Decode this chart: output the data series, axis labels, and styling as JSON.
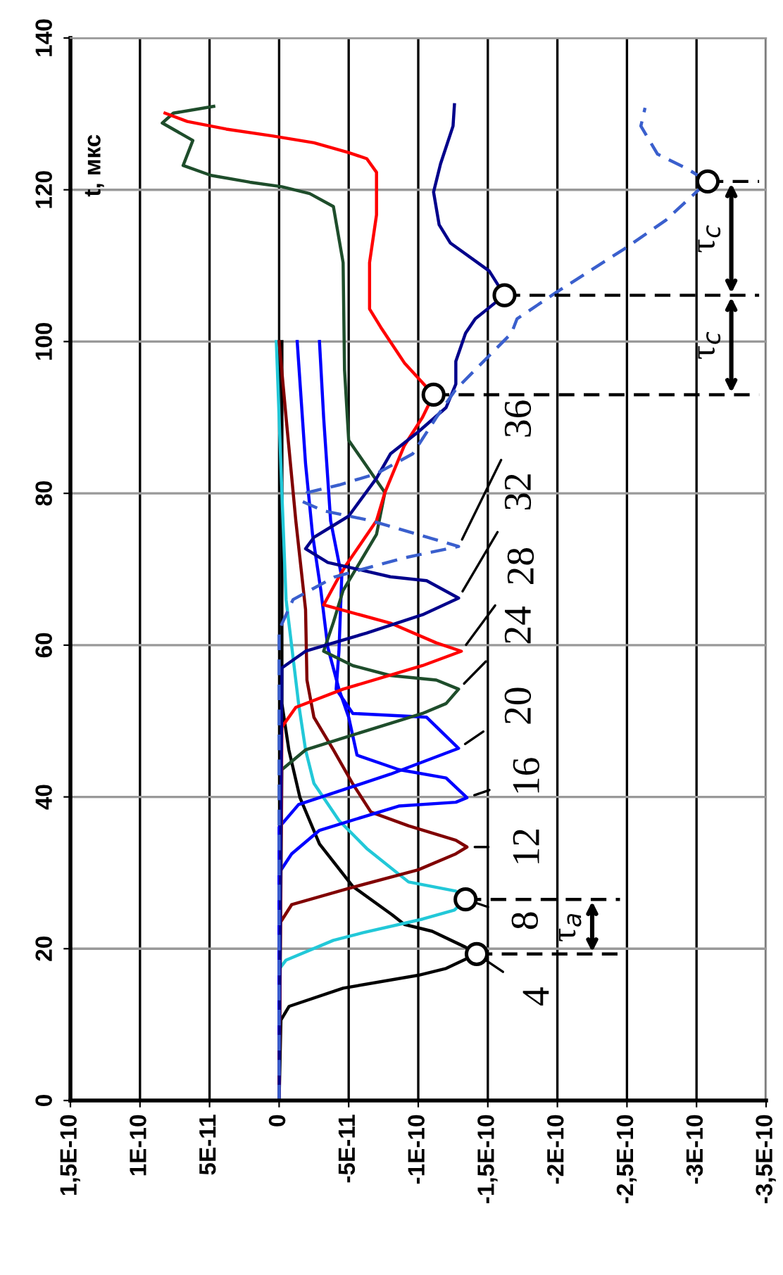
{
  "chart_data": {
    "type": "line",
    "ylabel": "t, мкс",
    "xlim": [
      1.5e-10,
      -3.5e-10
    ],
    "ylim": [
      0,
      140
    ],
    "xticks": [
      {
        "value": 1.5e-10,
        "label": "1,5E-10"
      },
      {
        "value": 1e-10,
        "label": "1E-10"
      },
      {
        "value": 5e-11,
        "label": "5E-11"
      },
      0,
      {
        "value": -5e-11,
        "label": "-5E-11"
      },
      {
        "value": -1e-10,
        "label": "-1E-10"
      },
      {
        "value": -1.5e-10,
        "label": "-1,5E-10"
      },
      {
        "value": -2e-10,
        "label": "-2E-10"
      },
      {
        "value": -2.5e-10,
        "label": "-2,5E-10"
      },
      {
        "value": -3e-10,
        "label": "-3E-10"
      },
      {
        "value": -3.5e-10,
        "label": "-3,5E-10"
      }
    ],
    "yticks": [
      0,
      20,
      40,
      60,
      80,
      100,
      120,
      140
    ],
    "grid": true,
    "series": [
      {
        "color": "#000000",
        "x": [
          0,
          -1.3e-12,
          -7.1e-12,
          -4.6e-11,
          -1e-10,
          -1.2e-10,
          -1.42e-10,
          -1.34e-10,
          -1.1e-10,
          -9e-11,
          -8.1e-11,
          -5.3e-11,
          -2.9e-11,
          -1.5e-11,
          -7e-12,
          -2e-12,
          -2e-12
        ],
        "values": [
          0,
          10.6,
          12.4,
          14.8,
          16.5,
          17.4,
          19.3,
          20.2,
          22.3,
          23.2,
          24.5,
          28.2,
          33.8,
          39.9,
          46.2,
          52.3,
          100
        ]
      },
      {
        "color": "#22c8d8",
        "x": [
          0,
          0,
          -5e-12,
          -3.9e-11,
          -6e-11,
          -1.03e-10,
          -1.26e-10,
          -1.34e-10,
          -1.27e-10,
          -9.3e-11,
          -6.3e-11,
          -4.3e-11,
          -2.5e-11,
          -1.9e-11,
          -1.4e-11,
          -1e-11,
          -5e-12,
          -2e-12,
          2e-12
        ],
        "values": [
          0,
          17.3,
          18.5,
          21.1,
          22.1,
          23.9,
          25.1,
          26.5,
          27.6,
          28.8,
          33.2,
          36.9,
          41.8,
          46.2,
          52.3,
          58.4,
          66,
          80,
          100
        ]
      },
      {
        "color": "#800000",
        "x": [
          0,
          0,
          -9e-12,
          -4.9e-11,
          -1e-10,
          -1.27e-10,
          -1.35e-10,
          -1.27e-10,
          -9.3e-11,
          -6.6e-11,
          -5.3e-11,
          -3.9e-11,
          -2.5e-11,
          -2e-11,
          -1.9e-11,
          -1.2e-11,
          -5e-12,
          0
        ],
        "values": [
          0,
          23.2,
          25.8,
          27.9,
          30.4,
          32.5,
          33.4,
          34.3,
          36.2,
          38.0,
          41.7,
          46.2,
          50.5,
          55.4,
          64.7,
          76.4,
          90,
          100
        ]
      },
      {
        "color": "#0000ff",
        "x": [
          0,
          0,
          -9e-12,
          -2.9e-11,
          -8.6e-11,
          -1.27e-10,
          -1.35e-10,
          -1.2e-10,
          -8.6e-11,
          -5.6e-11,
          -5e-11,
          -4.3e-11,
          -3.5e-11,
          -3e-11,
          -2.4e-11,
          -1.9e-11,
          -1.3e-11
        ],
        "values": [
          0,
          30,
          32.5,
          35.6,
          38.8,
          39.3,
          39.9,
          42.5,
          43.6,
          45.5,
          50.5,
          54.2,
          59.7,
          67.2,
          74.6,
          83.9,
          100
        ]
      },
      {
        "color": "#0000ff",
        "x": [
          0,
          0,
          -1.4e-11,
          -8e-11,
          -1.29e-10,
          -1.06e-10,
          -5.3e-11,
          -4.1e-11,
          -4.3e-11,
          -4.5e-11,
          -3.7e-11,
          -3.2e-11,
          -2.9e-11
        ],
        "values": [
          0,
          36,
          39,
          43,
          46.4,
          50.5,
          51.0,
          54.2,
          59.2,
          69,
          76.4,
          90,
          100
        ]
      },
      {
        "color": "#1e4d2b",
        "x": [
          0,
          -2e-12,
          -1.9e-11,
          -5e-11,
          -1.03e-10,
          -1.2e-10,
          -1.29e-10,
          -1.13e-10,
          -8e-11,
          -5.3e-11,
          -3.2e-11,
          -3.9e-11,
          -4.6e-11,
          -7e-11,
          -7.6e-11,
          -5e-11,
          -4.7e-11,
          -4.6e-11,
          -3.9e-11,
          -2.2e-11,
          -2e-12,
          2.1e-11,
          4.9e-11,
          6.9e-11,
          6.2e-11,
          8.4e-11,
          7.6e-11,
          4.7e-11
        ],
        "values": [
          0,
          43.6,
          46.2,
          48,
          51,
          52.3,
          54.2,
          55.4,
          56,
          57.3,
          59.2,
          63,
          67.2,
          74.6,
          80.1,
          87,
          96.3,
          110.4,
          117.8,
          119.5,
          120.4,
          121,
          121.9,
          123.2,
          126.5,
          128.8,
          130.1,
          131
        ]
      },
      {
        "color": "#ff0000",
        "x": [
          0,
          -2e-12,
          -1.2e-11,
          -4.6e-11,
          -1.03e-10,
          -1.31e-10,
          -1.13e-10,
          -8e-11,
          -3.2e-11,
          -4.3e-11,
          -4.8e-11,
          -7e-11,
          -7.6e-11,
          -9e-11,
          -1.03e-10,
          -1.11e-10,
          -9e-11,
          -7.3e-11,
          -6.5e-11,
          -6.5e-11,
          -7e-11,
          -7e-11,
          -6.3e-11,
          -5e-11,
          -2.5e-11,
          5e-12,
          3.8e-11,
          6.6e-11,
          8.2e-11
        ],
        "values": [
          0,
          49.2,
          51.8,
          54.2,
          57.3,
          59.2,
          60.3,
          62.9,
          65.3,
          69.0,
          70.5,
          76.4,
          80.1,
          86.3,
          90,
          93,
          97.2,
          101.9,
          104.3,
          110.4,
          116.7,
          122.3,
          124.1,
          124.9,
          126.2,
          127.1,
          128,
          129,
          130.1
        ]
      },
      {
        "color": "#00008b",
        "x": [
          0,
          -2e-12,
          -1.9e-11,
          -6.3e-11,
          -1.03e-10,
          -1.29e-10,
          -1.06e-10,
          -8e-11,
          -3.5e-11,
          -1.9e-11,
          -2.5e-11,
          -5e-11,
          -7e-11,
          -8e-11,
          -1e-10,
          -1.2e-10,
          -1.27e-10,
          -1.27e-10,
          -1.34e-10,
          -1.41e-10,
          -1.62e-10,
          -1.51e-10,
          -1.23e-10,
          -1.15e-10,
          -1.11e-10,
          -1.16e-10,
          -1.25e-10,
          -1.26e-10
        ],
        "values": [
          0,
          57,
          59.2,
          61.6,
          64,
          66.2,
          68.5,
          69,
          70.9,
          72.7,
          74.2,
          77,
          82,
          85.2,
          88.1,
          91.3,
          94.4,
          97.4,
          101.1,
          103,
          106.1,
          109.3,
          113,
          115.4,
          119.7,
          123.4,
          128.4,
          131.2
        ]
      },
      {
        "color": "#3a5fcd",
        "line_style": "dashed",
        "x": [
          0,
          0,
          -1e-11,
          -4e-11,
          -9e-11,
          -1.29e-10,
          -6.6e-11,
          -3.2e-11,
          -1.7e-11,
          -2e-11,
          -4.3e-11,
          -7e-11,
          -9.6e-11,
          -1.13e-10,
          -1.27e-10,
          -1.67e-10,
          -1.71e-10,
          -2.01e-10,
          -2.48e-10,
          -2.78e-10,
          -3.08e-10,
          -2.93e-10,
          -2.72e-10,
          -2.6e-10,
          -2.63e-10
        ],
        "values": [
          0,
          62,
          66,
          69,
          71.5,
          73,
          76.4,
          77.7,
          78.9,
          80.1,
          81.1,
          82.6,
          85.2,
          90,
          93.7,
          101.1,
          103,
          106.7,
          112.2,
          116,
          121.1,
          122.8,
          124.7,
          128.4,
          130.8
        ]
      },
      {
        "color": "#000000",
        "line_style": "dashed",
        "x": [
          -1.42e-10,
          -2.45e-10
        ],
        "values": [
          19.3,
          19.3
        ]
      },
      {
        "color": "#000000",
        "line_style": "dashed",
        "x": [
          -1.34e-10,
          -2.45e-10
        ],
        "values": [
          26.5,
          26.5
        ]
      },
      {
        "color": "#000000",
        "line_style": "dashed",
        "x": [
          -1.11e-10,
          -3.45e-10
        ],
        "values": [
          93,
          93
        ]
      },
      {
        "color": "#000000",
        "line_style": "dashed",
        "x": [
          -1.62e-10,
          -3.45e-10
        ],
        "values": [
          106.1,
          106.1
        ]
      },
      {
        "color": "#000000",
        "line_style": "dashed",
        "x": [
          -3.08e-10,
          -3.45e-10
        ],
        "values": [
          121.1,
          121.1
        ]
      },
      {
        "type": "scatter",
        "marker": "circle",
        "color": "#ffffff",
        "x": [
          -1.42e-10,
          -1.34e-10,
          -1.11e-10,
          -1.62e-10,
          -3.08e-10
        ],
        "values": [
          19.3,
          26.5,
          93,
          106.1,
          121.1
        ]
      }
    ],
    "annotations": [
      {
        "text": "4",
        "x": -1.42e-10,
        "y": 19.3
      },
      {
        "text": "8",
        "x": -1.34e-10,
        "y": 26.5
      },
      {
        "text": "12",
        "x": -1.35e-10,
        "y": 33.4
      },
      {
        "text": "16",
        "x": -1.35e-10,
        "y": 39.9
      },
      {
        "text": "20",
        "x": -1.29e-10,
        "y": 46.4
      },
      {
        "text": "24",
        "x": -1.29e-10,
        "y": 54.2
      },
      {
        "text": "28",
        "x": -1.31e-10,
        "y": 59.2
      },
      {
        "text": "32",
        "x": -1.29e-10,
        "y": 66.2
      },
      {
        "text": "36",
        "x": -1.29e-10,
        "y": 73
      },
      "τ$_{a}$",
      "τ$_{c}$",
      "τ$_{c}$"
    ]
  }
}
